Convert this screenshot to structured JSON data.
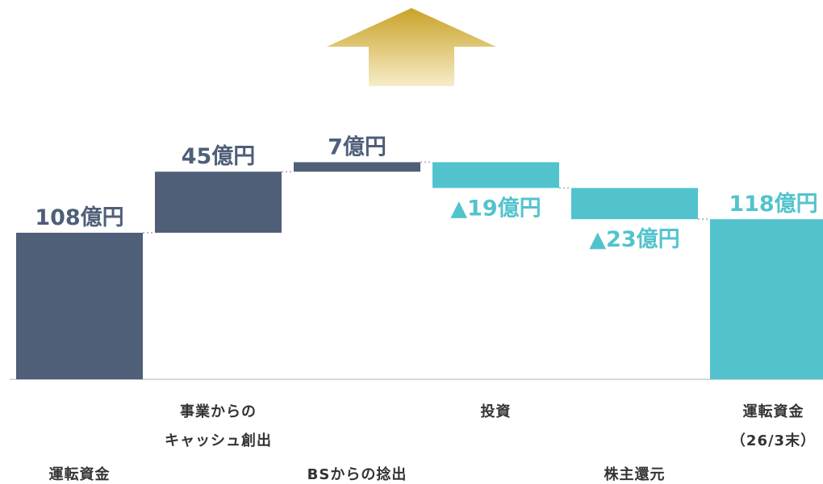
{
  "chart_data": {
    "type": "waterfall",
    "categories": [
      "運転資金",
      "事業からの\nキャッシュ創出",
      "BSからの捻出",
      "投資",
      "株主還元",
      "運転資金\n（26/3末）"
    ],
    "values": [
      108,
      45,
      7,
      -19,
      -23,
      118
    ],
    "value_labels": [
      "108億円",
      "45億円",
      "7億円",
      "▲19億円",
      "▲23億円",
      "118億円"
    ],
    "totals": [
      true,
      false,
      false,
      false,
      false,
      true
    ],
    "colors": [
      "#4f5f78",
      "#4f5f78",
      "#4f5f78",
      "#52c3cd",
      "#52c3cd",
      "#52c3cd"
    ]
  }
}
